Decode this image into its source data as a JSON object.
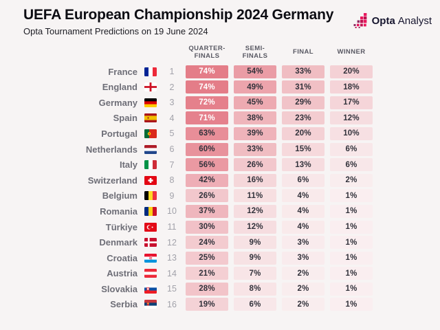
{
  "header": {
    "title": "UEFA European Championship 2024 Germany",
    "subtitle": "Opta Tournament Predictions on 19 June 2024",
    "logo": {
      "bold": "Opta",
      "light": "Analyst"
    }
  },
  "table": {
    "columns": [
      "QUARTER-FINALS",
      "SEMI-FINALS",
      "FINAL",
      "WINNER"
    ],
    "column_keys": [
      "quarter-finals",
      "semi-finals",
      "final",
      "winner"
    ],
    "rows": [
      {
        "team": "France",
        "flag": "france",
        "rank": 1,
        "values": [
          74,
          54,
          33,
          20
        ]
      },
      {
        "team": "England",
        "flag": "england",
        "rank": 2,
        "values": [
          74,
          49,
          31,
          18
        ]
      },
      {
        "team": "Germany",
        "flag": "germany",
        "rank": 3,
        "values": [
          72,
          45,
          29,
          17
        ]
      },
      {
        "team": "Spain",
        "flag": "spain",
        "rank": 4,
        "values": [
          71,
          38,
          23,
          12
        ]
      },
      {
        "team": "Portugal",
        "flag": "portugal",
        "rank": 5,
        "values": [
          63,
          39,
          20,
          10
        ]
      },
      {
        "team": "Netherlands",
        "flag": "netherlands",
        "rank": 6,
        "values": [
          60,
          33,
          15,
          6
        ]
      },
      {
        "team": "Italy",
        "flag": "italy",
        "rank": 7,
        "values": [
          56,
          26,
          13,
          6
        ]
      },
      {
        "team": "Switzerland",
        "flag": "switzerland",
        "rank": 8,
        "values": [
          42,
          16,
          6,
          2
        ]
      },
      {
        "team": "Belgium",
        "flag": "belgium",
        "rank": 9,
        "values": [
          26,
          11,
          4,
          1
        ]
      },
      {
        "team": "Romania",
        "flag": "romania",
        "rank": 10,
        "values": [
          37,
          12,
          4,
          1
        ]
      },
      {
        "team": "Türkiye",
        "flag": "turkiye",
        "rank": 11,
        "values": [
          30,
          12,
          4,
          1
        ]
      },
      {
        "team": "Denmark",
        "flag": "denmark",
        "rank": 12,
        "values": [
          24,
          9,
          3,
          1
        ]
      },
      {
        "team": "Croatia",
        "flag": "croatia",
        "rank": 13,
        "values": [
          25,
          9,
          3,
          1
        ]
      },
      {
        "team": "Austria",
        "flag": "austria",
        "rank": 14,
        "values": [
          21,
          7,
          2,
          1
        ]
      },
      {
        "team": "Slovakia",
        "flag": "slovakia",
        "rank": 15,
        "values": [
          28,
          8,
          2,
          1
        ]
      },
      {
        "team": "Serbia",
        "flag": "serbia",
        "rank": 16,
        "values": [
          19,
          6,
          2,
          1
        ]
      }
    ]
  },
  "colors": {
    "background": "#f7f4f4",
    "cell_scale_low": "#faf0f1",
    "cell_scale_high": "#e47b87",
    "cell_text_dark": "#32323b",
    "cell_text_light": "#ffffff",
    "white_text_min_pct": 70,
    "opta_pink": "#e8175d",
    "opta_crimson": "#c01050",
    "opta_purple": "#8e2b63",
    "opta_navy": "#16152e"
  },
  "chart_data": {
    "type": "table",
    "title": "UEFA European Championship 2024 Germany",
    "subtitle": "Opta Tournament Predictions on 19 June 2024",
    "columns": [
      "Quarter-finals %",
      "Semi-finals %",
      "Final %",
      "Winner %"
    ],
    "rows": [
      {
        "rank": 1,
        "team": "France",
        "values_pct": [
          74,
          54,
          33,
          20
        ]
      },
      {
        "rank": 2,
        "team": "England",
        "values_pct": [
          74,
          49,
          31,
          18
        ]
      },
      {
        "rank": 3,
        "team": "Germany",
        "values_pct": [
          72,
          45,
          29,
          17
        ]
      },
      {
        "rank": 4,
        "team": "Spain",
        "values_pct": [
          71,
          38,
          23,
          12
        ]
      },
      {
        "rank": 5,
        "team": "Portugal",
        "values_pct": [
          63,
          39,
          20,
          10
        ]
      },
      {
        "rank": 6,
        "team": "Netherlands",
        "values_pct": [
          60,
          33,
          15,
          6
        ]
      },
      {
        "rank": 7,
        "team": "Italy",
        "values_pct": [
          56,
          26,
          13,
          6
        ]
      },
      {
        "rank": 8,
        "team": "Switzerland",
        "values_pct": [
          42,
          16,
          6,
          2
        ]
      },
      {
        "rank": 9,
        "team": "Belgium",
        "values_pct": [
          26,
          11,
          4,
          1
        ]
      },
      {
        "rank": 10,
        "team": "Romania",
        "values_pct": [
          37,
          12,
          4,
          1
        ]
      },
      {
        "rank": 11,
        "team": "Türkiye",
        "values_pct": [
          30,
          12,
          4,
          1
        ]
      },
      {
        "rank": 12,
        "team": "Denmark",
        "values_pct": [
          24,
          9,
          3,
          1
        ]
      },
      {
        "rank": 13,
        "team": "Croatia",
        "values_pct": [
          25,
          9,
          3,
          1
        ]
      },
      {
        "rank": 14,
        "team": "Austria",
        "values_pct": [
          21,
          7,
          2,
          1
        ]
      },
      {
        "rank": 15,
        "team": "Slovakia",
        "values_pct": [
          28,
          8,
          2,
          1
        ]
      },
      {
        "rank": 16,
        "team": "Serbia",
        "values_pct": [
          19,
          6,
          2,
          1
        ]
      }
    ],
    "notes": "Heat-shaded probability table; darker pink = higher probability; white text for cells >= 70%"
  }
}
